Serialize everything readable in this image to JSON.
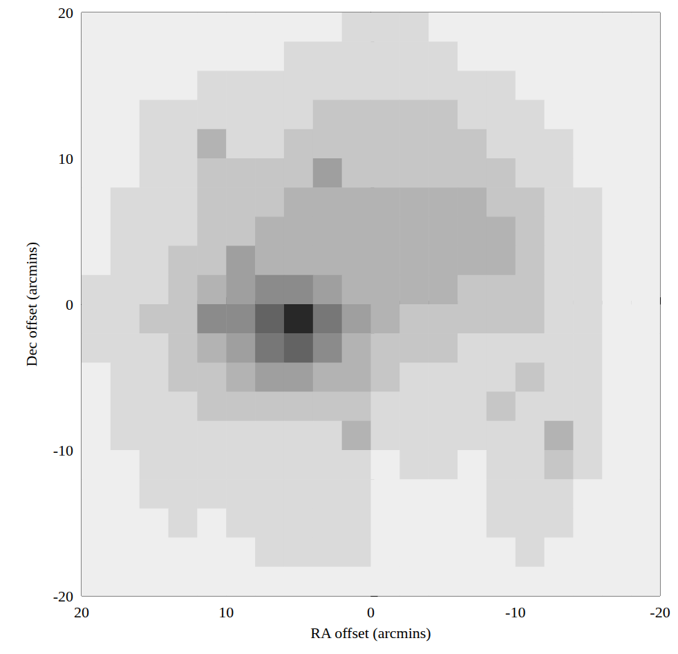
{
  "chart_data": {
    "type": "heatmap",
    "xlabel": "RA offset (arcmins)",
    "ylabel": "Dec offset (arcmins)",
    "xlim": [
      20,
      -20
    ],
    "ylim": [
      -20,
      20
    ],
    "xticks": [
      20,
      10,
      0,
      -10,
      -20
    ],
    "yticks": [
      -20,
      -10,
      0,
      10,
      20
    ],
    "grid": false,
    "x": [
      19,
      17,
      15,
      13,
      11,
      9,
      7,
      5,
      3,
      1,
      -1,
      -3,
      -5,
      -7,
      -9,
      -11,
      -13,
      -15,
      -17,
      -19
    ],
    "y": [
      19,
      17,
      15,
      13,
      11,
      9,
      7,
      5,
      3,
      1,
      -1,
      -3,
      -5,
      -7,
      -9,
      -11,
      -13,
      -15,
      -17,
      -19
    ],
    "cells": [
      [
        0,
        0,
        0,
        0,
        0,
        0,
        0,
        0,
        0,
        1,
        1,
        1,
        0,
        0,
        0,
        0,
        0,
        0,
        0,
        0
      ],
      [
        0,
        0,
        0,
        0,
        0,
        0,
        0,
        1,
        1,
        1,
        1,
        1,
        1,
        0,
        0,
        0,
        0,
        0,
        0,
        0
      ],
      [
        0,
        0,
        0,
        0,
        1,
        1,
        1,
        1,
        1,
        1,
        1,
        1,
        1,
        1,
        1,
        0,
        0,
        0,
        0,
        0
      ],
      [
        0,
        0,
        1,
        1,
        1,
        1,
        1,
        1,
        2,
        2,
        2,
        2,
        2,
        1,
        1,
        1,
        0,
        0,
        0,
        0
      ],
      [
        0,
        0,
        1,
        1,
        3,
        1,
        1,
        2,
        2,
        2,
        2,
        2,
        2,
        2,
        1,
        1,
        1,
        0,
        0,
        0
      ],
      [
        0,
        0,
        1,
        1,
        2,
        2,
        2,
        2,
        4,
        2,
        2,
        2,
        2,
        2,
        2,
        1,
        1,
        0,
        0,
        0
      ],
      [
        0,
        1,
        1,
        1,
        2,
        2,
        2,
        3,
        3,
        3,
        3,
        3,
        3,
        3,
        2,
        2,
        1,
        1,
        0,
        0
      ],
      [
        0,
        1,
        1,
        1,
        2,
        2,
        3,
        3,
        3,
        3,
        3,
        3,
        3,
        3,
        3,
        2,
        1,
        1,
        0,
        0
      ],
      [
        0,
        1,
        1,
        2,
        2,
        4,
        3,
        3,
        3,
        3,
        3,
        3,
        3,
        3,
        3,
        2,
        1,
        1,
        0,
        0
      ],
      [
        1,
        1,
        1,
        2,
        3,
        4,
        5,
        5,
        4,
        3,
        3,
        3,
        3,
        2,
        2,
        2,
        1,
        1,
        0,
        0
      ],
      [
        1,
        1,
        2,
        2,
        5,
        5,
        7,
        10,
        6,
        4,
        3,
        2,
        2,
        2,
        2,
        2,
        1,
        1,
        0,
        0
      ],
      [
        1,
        1,
        1,
        2,
        3,
        4,
        6,
        7,
        5,
        3,
        2,
        2,
        2,
        1,
        1,
        1,
        1,
        1,
        0,
        0
      ],
      [
        0,
        1,
        1,
        2,
        2,
        3,
        4,
        4,
        3,
        3,
        2,
        1,
        1,
        1,
        1,
        2,
        1,
        1,
        0,
        0
      ],
      [
        0,
        1,
        1,
        1,
        2,
        2,
        2,
        2,
        2,
        2,
        1,
        1,
        1,
        1,
        2,
        1,
        1,
        1,
        0,
        0
      ],
      [
        0,
        1,
        1,
        1,
        1,
        1,
        1,
        1,
        1,
        3,
        1,
        1,
        1,
        1,
        1,
        1,
        3,
        1,
        0,
        0
      ],
      [
        0,
        0,
        1,
        1,
        1,
        1,
        1,
        1,
        1,
        1,
        0,
        1,
        1,
        0,
        1,
        1,
        2,
        1,
        0,
        0
      ],
      [
        0,
        0,
        1,
        1,
        1,
        1,
        1,
        1,
        1,
        1,
        0,
        0,
        0,
        0,
        1,
        1,
        1,
        0,
        0,
        0
      ],
      [
        0,
        0,
        0,
        1,
        0,
        1,
        1,
        1,
        1,
        1,
        0,
        0,
        0,
        0,
        1,
        1,
        1,
        0,
        0,
        0
      ],
      [
        0,
        0,
        0,
        0,
        0,
        0,
        1,
        1,
        1,
        1,
        0,
        0,
        0,
        0,
        0,
        1,
        0,
        0,
        0,
        0
      ],
      [
        0,
        0,
        0,
        0,
        0,
        0,
        0,
        0,
        0,
        0,
        0,
        0,
        0,
        0,
        0,
        0,
        0,
        0,
        0,
        0
      ]
    ]
  }
}
